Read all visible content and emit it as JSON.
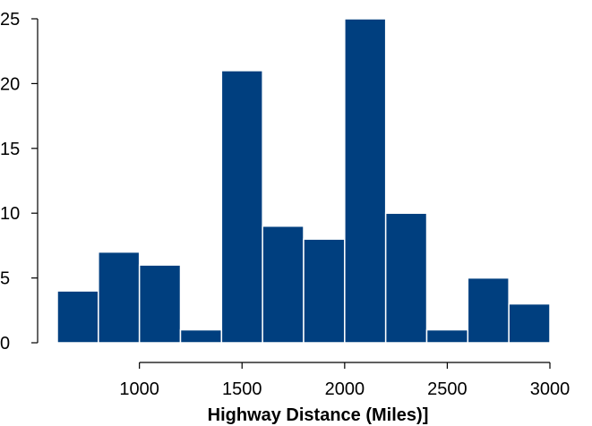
{
  "chart_data": {
    "type": "bar",
    "title": "",
    "xlabel": "Highway Distance (Miles)]",
    "ylabel": "",
    "bin_edges": [
      600,
      800,
      1000,
      1200,
      1400,
      1600,
      1800,
      2000,
      2200,
      2400,
      2600,
      2800,
      3000
    ],
    "values": [
      4,
      7,
      6,
      1,
      21,
      9,
      8,
      25,
      10,
      1,
      5,
      3
    ],
    "xticks": [
      1000,
      1500,
      2000,
      2500,
      3000
    ],
    "xtick_labels": [
      "1000",
      "1500",
      "2000",
      "2500",
      "3000"
    ],
    "yticks": [
      0,
      5,
      10,
      15,
      20,
      25
    ],
    "ytick_labels": [
      "0",
      "5",
      "10",
      "15",
      "20",
      "25"
    ],
    "xlim": [
      600,
      3000
    ],
    "ylim": [
      0,
      25
    ],
    "grid": false,
    "bar_color": "#003f7f",
    "bar_edge_color": "#ffffff"
  }
}
